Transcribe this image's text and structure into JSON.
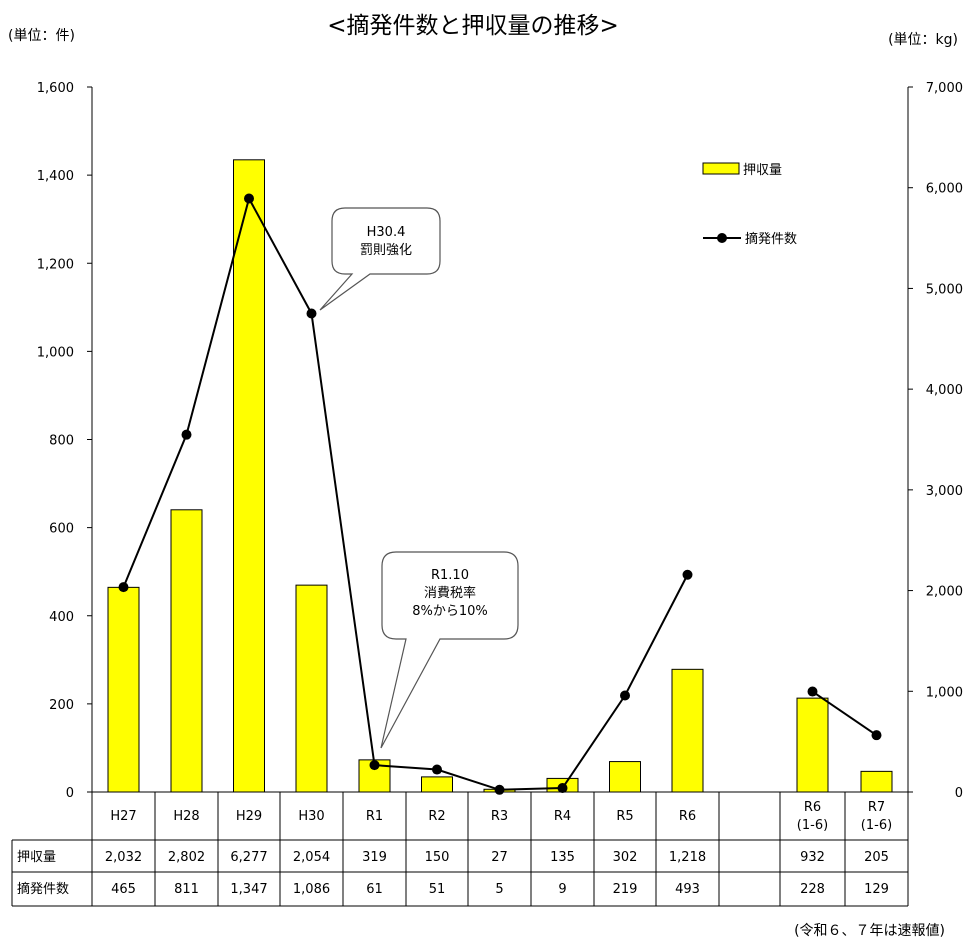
{
  "title": "<摘発件数と押収量の推移>",
  "left_unit": "(単位：件)",
  "right_unit": "(単位：kg)",
  "footnote": "(令和６、７年は速報値)",
  "colors": {
    "bar": "#ffff00",
    "bar_stroke": "#000000",
    "line": "#000000"
  },
  "callouts": [
    {
      "name": "callout-h30-4",
      "lines": [
        "H30.4",
        "罰則強化"
      ]
    },
    {
      "name": "callout-r1-10",
      "lines": [
        "R1.10",
        "消費税率",
        "8%から10%"
      ]
    }
  ],
  "table": {
    "row_labels": [
      "押収量",
      "摘発件数"
    ]
  },
  "chart_data": {
    "type": "bar",
    "title": "<摘発件数と押収量の推移>",
    "categories": [
      [
        "H27"
      ],
      [
        "H28"
      ],
      [
        "H29"
      ],
      [
        "H30"
      ],
      [
        "R1"
      ],
      [
        "R2"
      ],
      [
        "R3"
      ],
      [
        "R4"
      ],
      [
        "R5"
      ],
      [
        "R6"
      ],
      [],
      [
        "R6",
        "(1-6)"
      ],
      [
        "R7",
        "(1-6)"
      ]
    ],
    "y_left": {
      "unit": "(単位：件)",
      "range": [
        0,
        1600
      ],
      "ticks": [
        "0",
        "200",
        "400",
        "600",
        "800",
        "1,000",
        "1,200",
        "1,400",
        "1,600"
      ]
    },
    "y_right": {
      "unit": "(単位：kg)",
      "range": [
        0,
        7000
      ],
      "ticks": [
        "0",
        "1,000",
        "2,000",
        "3,000",
        "4,000",
        "5,000",
        "6,000",
        "7,000"
      ]
    },
    "grid": false,
    "legend_position": "top-right",
    "series": [
      {
        "name": "押収量",
        "type": "bar",
        "axis": "right",
        "values": [
          2032,
          2802,
          6277,
          2054,
          319,
          150,
          27,
          135,
          302,
          1218,
          null,
          932,
          205
        ],
        "labels": [
          "2,032",
          "2,802",
          "6,277",
          "2,054",
          "319",
          "150",
          "27",
          "135",
          "302",
          "1,218",
          "",
          "932",
          "205"
        ]
      },
      {
        "name": "摘発件数",
        "type": "line",
        "axis": "left",
        "values": [
          465,
          811,
          1347,
          1086,
          61,
          51,
          5,
          9,
          219,
          493,
          null,
          228,
          129
        ],
        "labels": [
          "465",
          "811",
          "1,347",
          "1,086",
          "61",
          "51",
          "5",
          "9",
          "219",
          "493",
          "",
          "228",
          "129"
        ]
      }
    ]
  }
}
